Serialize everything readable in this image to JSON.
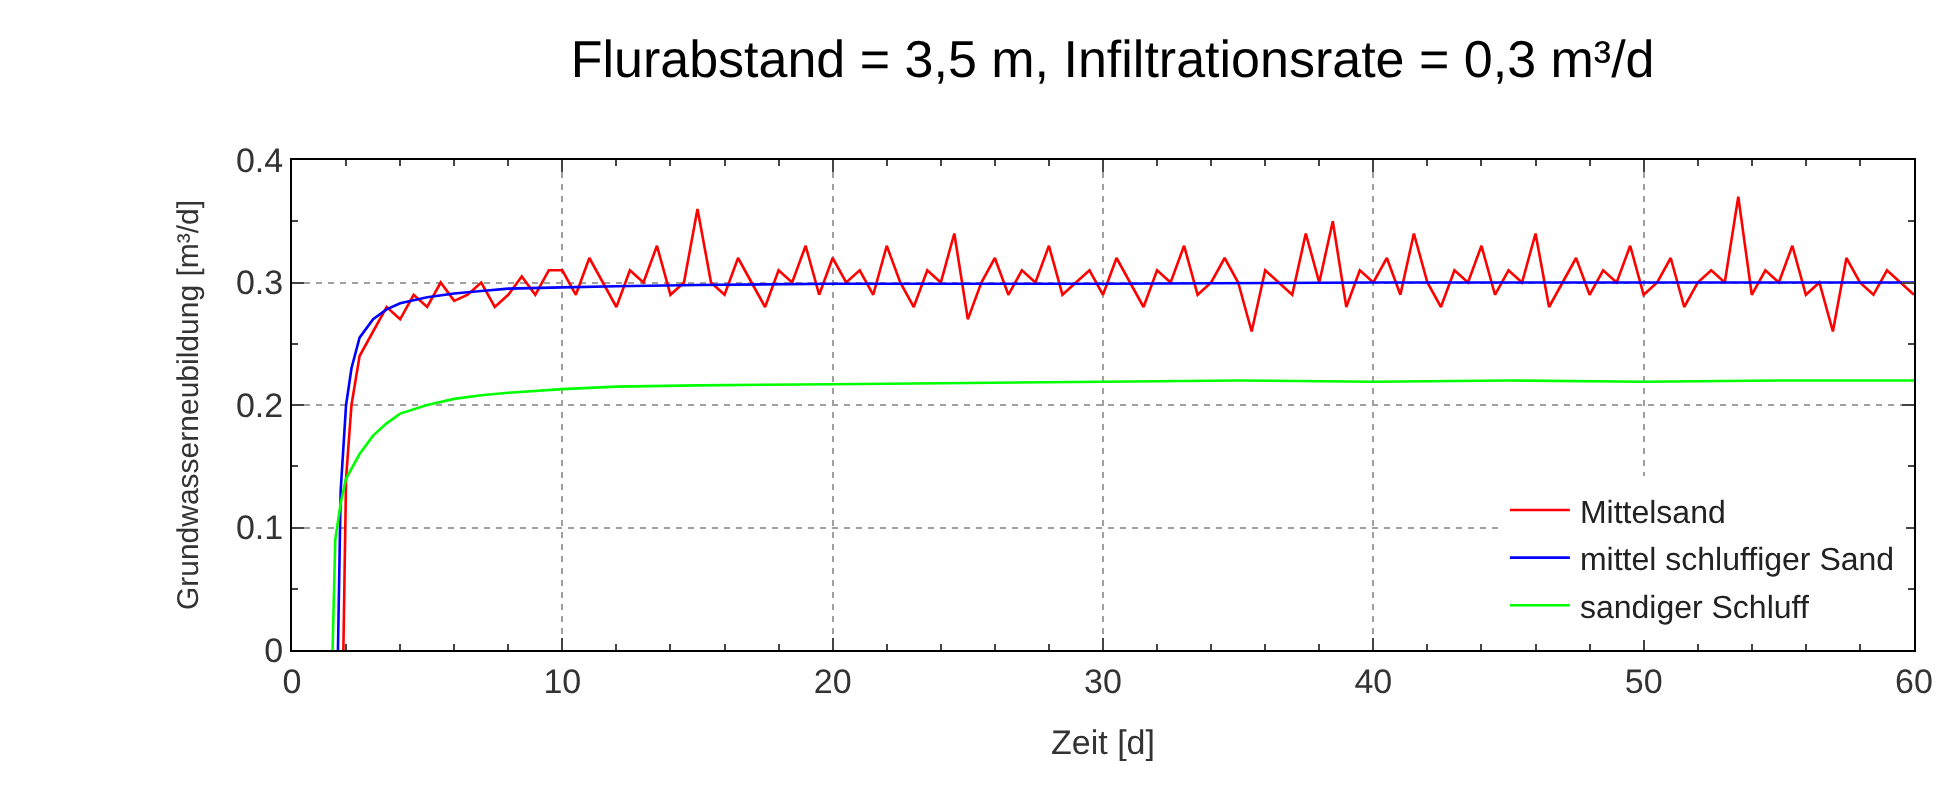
{
  "chart_data": {
    "type": "line",
    "title": "Flurabstand = 3,5 m, Infiltrationsrate = 0,3 m³/d",
    "xlabel": "Zeit [d]",
    "ylabel": "Grundwasserneubildung [m³/d]",
    "xlim": [
      0,
      60
    ],
    "xticks": [
      0,
      10,
      20,
      30,
      40,
      50,
      60
    ],
    "ylim": [
      0,
      0.4
    ],
    "yticks": [
      0,
      0.1,
      0.2,
      0.3,
      0.4
    ],
    "grid": true,
    "legend": "bottom right",
    "marker": "none",
    "line_style": "solid",
    "series": [
      {
        "name": "Mittelsand",
        "color": "#ff0000",
        "x": [
          1.9,
          2.0,
          2.2,
          2.5,
          3.0,
          3.5,
          4.0,
          4.5,
          5.0,
          5.5,
          6.0,
          6.5,
          7.0,
          7.5,
          8.0,
          8.5,
          9.0,
          9.5,
          10,
          10.5,
          11,
          11.5,
          12,
          12.5,
          13,
          13.5,
          14,
          14.5,
          15,
          15.5,
          16,
          16.5,
          17,
          17.5,
          18,
          18.5,
          19,
          19.5,
          20,
          20.5,
          21,
          21.5,
          22,
          22.5,
          23,
          23.5,
          24,
          24.5,
          25,
          25.5,
          26,
          26.5,
          27,
          27.5,
          28,
          28.5,
          29,
          29.5,
          30,
          30.5,
          31,
          31.5,
          32,
          32.5,
          33,
          33.5,
          34,
          34.5,
          35,
          35.5,
          36,
          36.5,
          37,
          37.5,
          38,
          38.5,
          39,
          39.5,
          40,
          40.5,
          41,
          41.5,
          42,
          42.5,
          43,
          43.5,
          44,
          44.5,
          45,
          45.5,
          46,
          46.5,
          47,
          47.5,
          48,
          48.5,
          49,
          49.5,
          50,
          50.5,
          51,
          51.5,
          52,
          52.5,
          53,
          53.5,
          54,
          54.5,
          55,
          55.5,
          56,
          56.5,
          57,
          57.5,
          58,
          58.5,
          59,
          59.5,
          60
        ],
        "values": [
          0,
          0.14,
          0.2,
          0.24,
          0.26,
          0.28,
          0.27,
          0.29,
          0.28,
          0.3,
          0.285,
          0.29,
          0.3,
          0.28,
          0.29,
          0.305,
          0.29,
          0.31,
          0.31,
          0.29,
          0.32,
          0.3,
          0.28,
          0.31,
          0.3,
          0.33,
          0.29,
          0.3,
          0.36,
          0.3,
          0.29,
          0.32,
          0.3,
          0.28,
          0.31,
          0.3,
          0.33,
          0.29,
          0.32,
          0.3,
          0.31,
          0.29,
          0.33,
          0.3,
          0.28,
          0.31,
          0.3,
          0.34,
          0.27,
          0.3,
          0.32,
          0.29,
          0.31,
          0.3,
          0.33,
          0.29,
          0.3,
          0.31,
          0.29,
          0.32,
          0.3,
          0.28,
          0.31,
          0.3,
          0.33,
          0.29,
          0.3,
          0.32,
          0.3,
          0.26,
          0.31,
          0.3,
          0.29,
          0.34,
          0.3,
          0.35,
          0.28,
          0.31,
          0.3,
          0.32,
          0.29,
          0.34,
          0.3,
          0.28,
          0.31,
          0.3,
          0.33,
          0.29,
          0.31,
          0.3,
          0.34,
          0.28,
          0.3,
          0.32,
          0.29,
          0.31,
          0.3,
          0.33,
          0.29,
          0.3,
          0.32,
          0.28,
          0.3,
          0.31,
          0.3,
          0.37,
          0.29,
          0.31,
          0.3,
          0.33,
          0.29,
          0.3,
          0.26,
          0.32,
          0.3,
          0.29,
          0.31,
          0.3,
          0.29
        ]
      },
      {
        "name": "mittel schluffiger Sand",
        "color": "#0000ff",
        "x": [
          1.7,
          1.8,
          2.0,
          2.2,
          2.5,
          3,
          3.5,
          4,
          5,
          6,
          7,
          8,
          10,
          12,
          15,
          20,
          30,
          40,
          50,
          60
        ],
        "values": [
          0,
          0.13,
          0.2,
          0.23,
          0.255,
          0.27,
          0.278,
          0.283,
          0.288,
          0.291,
          0.293,
          0.295,
          0.296,
          0.297,
          0.298,
          0.299,
          0.299,
          0.3,
          0.3,
          0.3
        ]
      },
      {
        "name": "sandiger Schluff",
        "color": "#00ff00",
        "x": [
          1.5,
          1.6,
          1.8,
          2,
          2.5,
          3,
          3.5,
          4,
          5,
          6,
          7,
          8,
          10,
          12,
          15,
          20,
          25,
          30,
          35,
          40,
          45,
          50,
          55,
          60
        ],
        "values": [
          0,
          0.09,
          0.12,
          0.14,
          0.16,
          0.175,
          0.185,
          0.193,
          0.2,
          0.205,
          0.208,
          0.21,
          0.213,
          0.215,
          0.216,
          0.217,
          0.218,
          0.219,
          0.22,
          0.219,
          0.22,
          0.219,
          0.22,
          0.22
        ]
      }
    ]
  }
}
